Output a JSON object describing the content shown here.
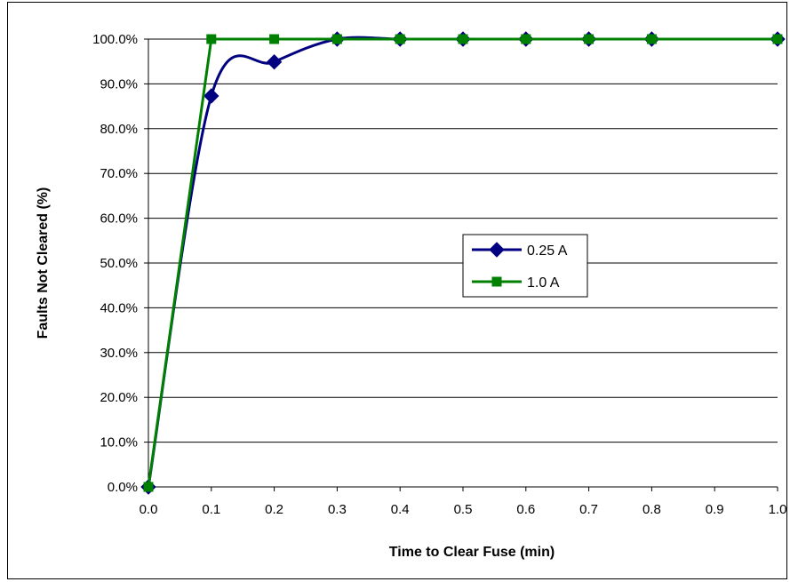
{
  "chart_data": {
    "type": "line",
    "title": "",
    "xlabel": "Time to Clear Fuse (min)",
    "ylabel": "Faults Not Cleared (%)",
    "xlim": [
      0.0,
      1.0
    ],
    "ylim": [
      0.0,
      100.0
    ],
    "x_ticks": [
      "0.0",
      "0.1",
      "0.2",
      "0.3",
      "0.4",
      "0.5",
      "0.6",
      "0.7",
      "0.8",
      "0.9",
      "1.0"
    ],
    "y_ticks": [
      "0.0%",
      "10.0%",
      "20.0%",
      "30.0%",
      "40.0%",
      "50.0%",
      "60.0%",
      "70.0%",
      "80.0%",
      "90.0%",
      "100.0%"
    ],
    "grid": "horizontal",
    "legend_position": "center-right",
    "series": [
      {
        "name": "0.25 A",
        "color": "#000080",
        "marker": "diamond",
        "smooth": true,
        "x": [
          0.0,
          0.1,
          0.2,
          0.3,
          0.4,
          0.5,
          0.6,
          0.7,
          0.8,
          1.0
        ],
        "y": [
          0.0,
          87.3,
          94.9,
          100.0,
          100.0,
          100.0,
          100.0,
          100.0,
          100.0,
          100.0
        ]
      },
      {
        "name": "1.0 A",
        "color": "#008000",
        "marker": "square",
        "smooth": false,
        "x": [
          0.0,
          0.1,
          0.2,
          0.3,
          0.4,
          0.5,
          0.6,
          0.7,
          0.8,
          1.0
        ],
        "y": [
          0.0,
          100.0,
          100.0,
          100.0,
          100.0,
          100.0,
          100.0,
          100.0,
          100.0,
          100.0
        ]
      }
    ]
  }
}
